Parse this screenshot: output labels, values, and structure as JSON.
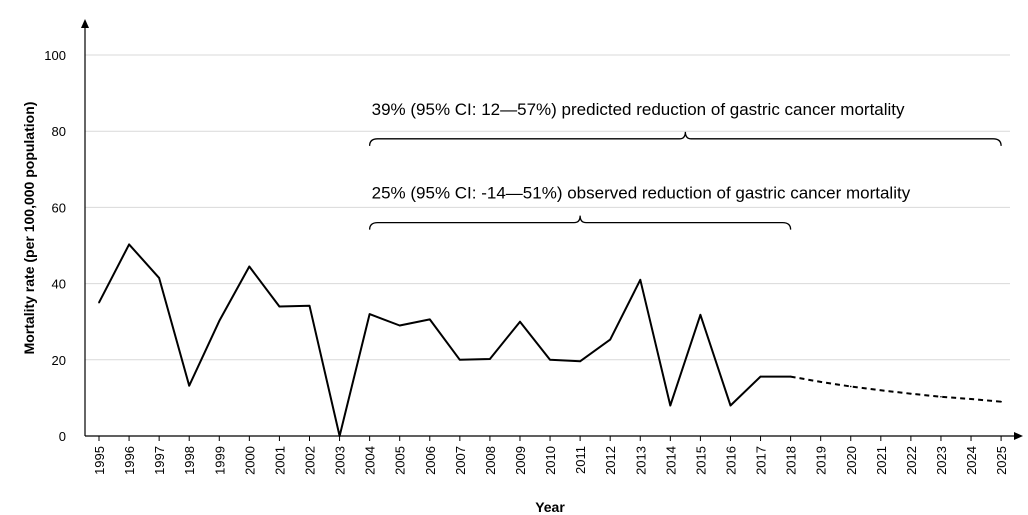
{
  "chart_data": {
    "type": "line",
    "title": "",
    "xlabel": "Year",
    "ylabel": "Mortality rate (per 100,000 population)",
    "ylim": [
      0,
      100
    ],
    "yticks": [
      0,
      20,
      40,
      60,
      80,
      100
    ],
    "grid": true,
    "categories": [
      "1995",
      "1996",
      "1997",
      "1998",
      "1999",
      "2000",
      "2001",
      "2002",
      "2003",
      "2004",
      "2005",
      "2006",
      "2007",
      "2008",
      "2009",
      "2010",
      "2011",
      "2012",
      "2013",
      "2014",
      "2015",
      "2016",
      "2017",
      "2018",
      "2019",
      "2020",
      "2021",
      "2022",
      "2023",
      "2024",
      "2025"
    ],
    "series": [
      {
        "style": "solid",
        "x": [
          "1995",
          "1996",
          "1997",
          "1998",
          "1999",
          "2000",
          "2001",
          "2002",
          "2003",
          "2004",
          "2005",
          "2006",
          "2007",
          "2008",
          "2009",
          "2010",
          "2011",
          "2012",
          "2013",
          "2014",
          "2015",
          "2016",
          "2017",
          "2018"
        ],
        "values": [
          35,
          50.3,
          41.5,
          13.2,
          30.2,
          44.5,
          34,
          34.2,
          0,
          32,
          29,
          30.6,
          20,
          20.2,
          30,
          20,
          19.6,
          25.3,
          41,
          8,
          31.8,
          8,
          15.6,
          15.6
        ]
      },
      {
        "style": "dashed",
        "x": [
          "2018",
          "2019",
          "2020",
          "2021",
          "2022",
          "2023",
          "2024",
          "2025"
        ],
        "values": [
          15.6,
          14.2,
          13,
          12,
          11.1,
          10.3,
          9.7,
          9
        ]
      }
    ],
    "annotations": [
      {
        "text": "39%  (95% CI: 12—57%) predicted reduction of gastric cancer mortality",
        "from": "2004",
        "to": "2025",
        "y": 78
      },
      {
        "text": "25%  (95% CI: -14—51%) observed reduction of gastric cancer mortality",
        "from": "2004",
        "to": "2018",
        "y": 56
      }
    ],
    "colors": {
      "line": "#000000",
      "grid": "#d9d9d9",
      "axis": "#000000"
    }
  }
}
